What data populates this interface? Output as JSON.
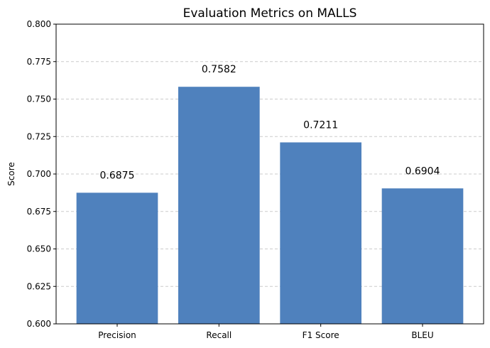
{
  "chart_data": {
    "type": "bar",
    "title": "Evaluation Metrics on MALLS",
    "xlabel": "",
    "ylabel": "Score",
    "categories": [
      "Precision",
      "Recall",
      "F1 Score",
      "BLEU"
    ],
    "values": [
      0.6875,
      0.7582,
      0.7211,
      0.6904
    ],
    "value_labels": [
      "0.6875",
      "0.7582",
      "0.7211",
      "0.6904"
    ],
    "ylim": [
      0.6,
      0.8
    ],
    "yticks": [
      0.6,
      0.625,
      0.65,
      0.675,
      0.7,
      0.725,
      0.75,
      0.775,
      0.8
    ],
    "ytick_labels": [
      "0.600",
      "0.625",
      "0.650",
      "0.675",
      "0.700",
      "0.725",
      "0.750",
      "0.775",
      "0.800"
    ],
    "grid": "y-dashed",
    "bar_color": "#4f81bd"
  }
}
